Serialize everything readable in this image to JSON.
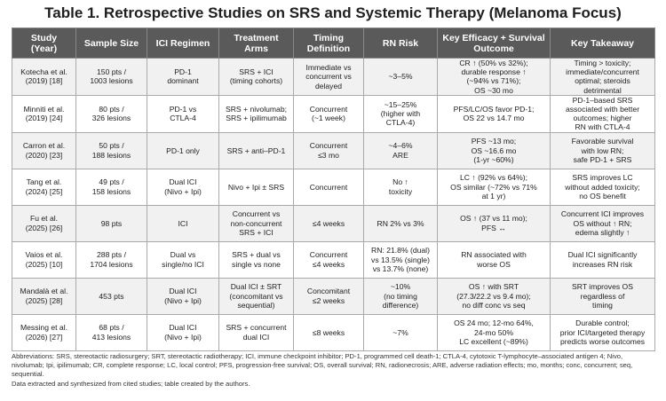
{
  "title": "Table 1. Retrospective Studies on SRS and Systemic Therapy (Melanoma Focus)",
  "table": {
    "header": [
      [
        "Study",
        "(Year)"
      ],
      [
        "Sample Size"
      ],
      [
        "ICI Regimen"
      ],
      [
        "Treatment Arms"
      ],
      [
        "Timing",
        "Definition"
      ],
      [
        "RN Risk"
      ],
      [
        "Key Efficacy + Survival Outcome"
      ],
      [
        "Key Takeaway"
      ]
    ],
    "rows": [
      [
        [
          "Kotecha et al.",
          "(2019) [18]"
        ],
        [
          "150 pts /",
          "1003 lesions"
        ],
        [
          "PD-1",
          "dominant"
        ],
        [
          "SRS + ICI",
          "(timing cohorts)"
        ],
        [
          "Immediate vs",
          "concurrent vs",
          "delayed"
        ],
        [
          "~3–5%"
        ],
        [
          "CR ↑ (50% vs 32%);",
          "durable response ↑",
          "(~94% vs 71%);",
          "OS ~30 mo"
        ],
        [
          "Timing > toxicity;",
          "immediate/concurrent",
          "optimal; steroids",
          "detrimental"
        ]
      ],
      [
        [
          "Minniti et al.",
          "(2019) [24]"
        ],
        [
          "80 pts /",
          "326 lesions"
        ],
        [
          "PD-1 vs",
          "CTLA-4"
        ],
        [
          "SRS + nivolumab;",
          "SRS + ipilimumab"
        ],
        [
          "Concurrent",
          "(~1 week)"
        ],
        [
          "~15–25%",
          "(higher with",
          "CTLA-4)"
        ],
        [
          "PFS/LC/OS favor PD-1;",
          "OS 22 vs 14.7 mo"
        ],
        [
          "PD-1–based SRS",
          "associated with better",
          "outcomes; higher",
          "RN with CTLA-4"
        ]
      ],
      [
        [
          "Carron et al.",
          "(2020) [23]"
        ],
        [
          "50 pts /",
          "188 lesions"
        ],
        [
          "PD-1 only"
        ],
        [
          "SRS + anti–PD-1"
        ],
        [
          "Concurrent",
          "≤3 mo"
        ],
        [
          "~4–6%",
          "ARE"
        ],
        [
          "PFS ~13 mo;",
          "OS ~16.6 mo",
          "(1-yr ~60%)"
        ],
        [
          "Favorable survival",
          "with low RN;",
          "safe PD-1 + SRS"
        ]
      ],
      [
        [
          "Tang et al.",
          "(2024) [25]"
        ],
        [
          "49 pts /",
          "158 lesions"
        ],
        [
          "Dual ICI",
          "(Nivo + Ipi)"
        ],
        [
          "Nivo + Ipi ± SRS"
        ],
        [
          "Concurrent"
        ],
        [
          "No ↑",
          "toxicity"
        ],
        [
          "LC ↑ (92% vs 64%);",
          "OS similar (~72% vs 71%",
          "at 1 yr)"
        ],
        [
          "SRS improves LC",
          "without added toxicity;",
          "no OS benefit"
        ]
      ],
      [
        [
          "Fu et al.",
          "(2025) [26]"
        ],
        [
          "98 pts"
        ],
        [
          "ICI"
        ],
        [
          "Concurrent vs",
          "non-concurrent",
          "SRS + ICI"
        ],
        [
          "≤4 weeks"
        ],
        [
          "RN 2% vs 3%"
        ],
        [
          "OS ↑ (37 vs 11 mo);",
          "PFS ↔"
        ],
        [
          "Concurrent ICI improves",
          "OS without ↑ RN;",
          "edema slightly ↑"
        ]
      ],
      [
        [
          "Vaios et al.",
          "(2025) [10]"
        ],
        [
          "288 pts /",
          "1704 lesions"
        ],
        [
          "Dual vs",
          "single/no ICI"
        ],
        [
          "SRS + dual vs",
          "single vs none"
        ],
        [
          "Concurrent",
          "≤4 weeks"
        ],
        [
          "RN: 21.8% (dual)",
          "vs 13.5% (single)",
          "vs 13.7% (none)"
        ],
        [
          "RN associated with",
          "worse OS"
        ],
        [
          "Dual ICI significantly",
          "increases RN risk"
        ]
      ],
      [
        [
          "Mandalà et al.",
          "(2025) [28]"
        ],
        [
          "453 pts"
        ],
        [
          "Dual ICI",
          "(Nivo + Ipi)"
        ],
        [
          "Dual ICI ± SRT",
          "(concomitant vs",
          "sequential)"
        ],
        [
          "Concomitant",
          "≤2 weeks"
        ],
        [
          "~10%",
          "(no timing",
          "difference)"
        ],
        [
          "OS ↑ with SRT",
          "(27.3/22.2 vs 9.4 mo);",
          "no diff conc vs seq"
        ],
        [
          "SRT improves OS",
          "regardless of",
          "timing"
        ]
      ],
      [
        [
          "Messing et al.",
          "(2026) [27]"
        ],
        [
          "68 pts /",
          "413 lesions"
        ],
        [
          "Dual ICI",
          "(Nivo + Ipi)"
        ],
        [
          "SRS + concurrent",
          "dual ICI"
        ],
        [
          "≤8 weeks"
        ],
        [
          "~7%"
        ],
        [
          "OS 24 mo; 12-mo 64%,",
          "24-mo 50%",
          "LC excellent (~89%)"
        ],
        [
          "Durable control;",
          "prior ICI/targeted therapy",
          "predicts worse outcomes"
        ]
      ]
    ]
  },
  "footnotes": {
    "abbreviations": "Abbreviations: SRS, stereotactic radiosurgery; SRT, stereotactic radiotherapy; ICI, immune checkpoint inhibitor; PD-1, programmed cell death-1; CTLA-4, cytotoxic T-lymphocyte–associated antigen 4; Nivo, nivolumab; Ipi, ipilimumab; CR, complete response; LC, local control; PFS, progression-free survival; OS, overall survival; RN, radionecrosis; ARE, adverse radiation effects; mo, months; conc, concurrent; seq, sequential.",
    "source": "Data extracted and synthesized from cited studies; table created by the authors."
  }
}
